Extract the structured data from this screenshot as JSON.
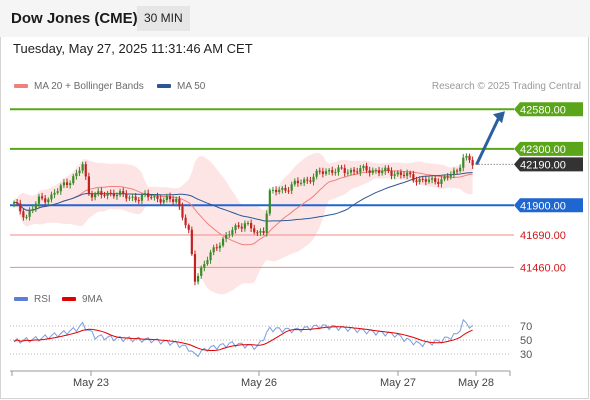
{
  "header": {
    "title": "Dow Jones (CME)",
    "timeframe": "30 MIN"
  },
  "datetime": "Tuesday, May 27, 2025 11:31:46 AM CET",
  "legend": [
    {
      "label": "MA 20 + Bollinger Bands",
      "color": "#f08080"
    },
    {
      "label": "MA 50",
      "color": "#2b5797"
    }
  ],
  "credit": "Research © 2025 Trading Central",
  "rsi_legend": [
    {
      "label": "RSI",
      "color": "#5b7fd6"
    },
    {
      "label": "9MA",
      "color": "#e00000"
    }
  ],
  "colors": {
    "up": "#3a8a2a",
    "down": "#c0221f",
    "support": "#f08a8a",
    "resistance": "#5aa51a",
    "pivot": "#1e66d0",
    "arrow": "#2b5fa0"
  },
  "chart_data": {
    "type": "candlestick",
    "last_price": 42190,
    "ylim": [
      41300,
      42660
    ],
    "x_tick_labels": [
      "May 23",
      "May 26",
      "May 27",
      "May 28"
    ],
    "levels": [
      {
        "value": 42580,
        "label": "42580.00",
        "kind": "resistance"
      },
      {
        "value": 42300,
        "label": "42300.00",
        "kind": "resistance"
      },
      {
        "value": 41900,
        "label": "41900.00",
        "kind": "pivot"
      },
      {
        "value": 41690,
        "label": "41690.00",
        "kind": "support"
      },
      {
        "value": 41460,
        "label": "41460.00",
        "kind": "support"
      }
    ],
    "last_label": "42190.00",
    "target_arrow": {
      "from": 42190,
      "to": 42580
    },
    "candle_seeds": [
      {
        "i": 0,
        "c": 41910
      },
      {
        "i": 4,
        "c": 41820
      },
      {
        "i": 8,
        "c": 41940
      },
      {
        "i": 12,
        "c": 41960
      },
      {
        "i": 16,
        "c": 42050
      },
      {
        "i": 20,
        "c": 42110
      },
      {
        "i": 22,
        "c": 42190
      },
      {
        "i": 24,
        "c": 41990
      },
      {
        "i": 28,
        "c": 41970
      },
      {
        "i": 32,
        "c": 41990
      },
      {
        "i": 36,
        "c": 41960
      },
      {
        "i": 40,
        "c": 41950
      },
      {
        "i": 44,
        "c": 41970
      },
      {
        "i": 48,
        "c": 41930
      },
      {
        "i": 52,
        "c": 41950
      },
      {
        "i": 56,
        "c": 41700
      },
      {
        "i": 58,
        "c": 41380
      },
      {
        "i": 62,
        "c": 41520
      },
      {
        "i": 66,
        "c": 41640
      },
      {
        "i": 70,
        "c": 41720
      },
      {
        "i": 74,
        "c": 41780
      },
      {
        "i": 78,
        "c": 41690
      },
      {
        "i": 80,
        "c": 41730
      },
      {
        "i": 82,
        "c": 41990
      },
      {
        "i": 86,
        "c": 42010
      },
      {
        "i": 90,
        "c": 42050
      },
      {
        "i": 94,
        "c": 42080
      },
      {
        "i": 98,
        "c": 42130
      },
      {
        "i": 102,
        "c": 42150
      },
      {
        "i": 106,
        "c": 42140
      },
      {
        "i": 110,
        "c": 42150
      },
      {
        "i": 114,
        "c": 42150
      },
      {
        "i": 118,
        "c": 42140
      },
      {
        "i": 122,
        "c": 42130
      },
      {
        "i": 126,
        "c": 42110
      },
      {
        "i": 130,
        "c": 42080
      },
      {
        "i": 134,
        "c": 42070
      },
      {
        "i": 138,
        "c": 42090
      },
      {
        "i": 142,
        "c": 42140
      },
      {
        "i": 144,
        "c": 42250
      },
      {
        "i": 147,
        "c": 42190
      }
    ],
    "rsi": {
      "ylim": [
        10,
        90
      ],
      "ticks": [
        70,
        50,
        30
      ],
      "seeds": [
        {
          "i": 0,
          "v": 48
        },
        {
          "i": 8,
          "v": 52
        },
        {
          "i": 16,
          "v": 60
        },
        {
          "i": 20,
          "v": 66
        },
        {
          "i": 22,
          "v": 72
        },
        {
          "i": 26,
          "v": 55
        },
        {
          "i": 34,
          "v": 52
        },
        {
          "i": 44,
          "v": 50
        },
        {
          "i": 52,
          "v": 45
        },
        {
          "i": 56,
          "v": 38
        },
        {
          "i": 58,
          "v": 28
        },
        {
          "i": 62,
          "v": 38
        },
        {
          "i": 70,
          "v": 45
        },
        {
          "i": 78,
          "v": 40
        },
        {
          "i": 82,
          "v": 66
        },
        {
          "i": 90,
          "v": 64
        },
        {
          "i": 98,
          "v": 70
        },
        {
          "i": 106,
          "v": 67
        },
        {
          "i": 114,
          "v": 62
        },
        {
          "i": 122,
          "v": 58
        },
        {
          "i": 126,
          "v": 50
        },
        {
          "i": 130,
          "v": 44
        },
        {
          "i": 136,
          "v": 48
        },
        {
          "i": 142,
          "v": 58
        },
        {
          "i": 144,
          "v": 76
        },
        {
          "i": 147,
          "v": 68
        }
      ]
    }
  }
}
